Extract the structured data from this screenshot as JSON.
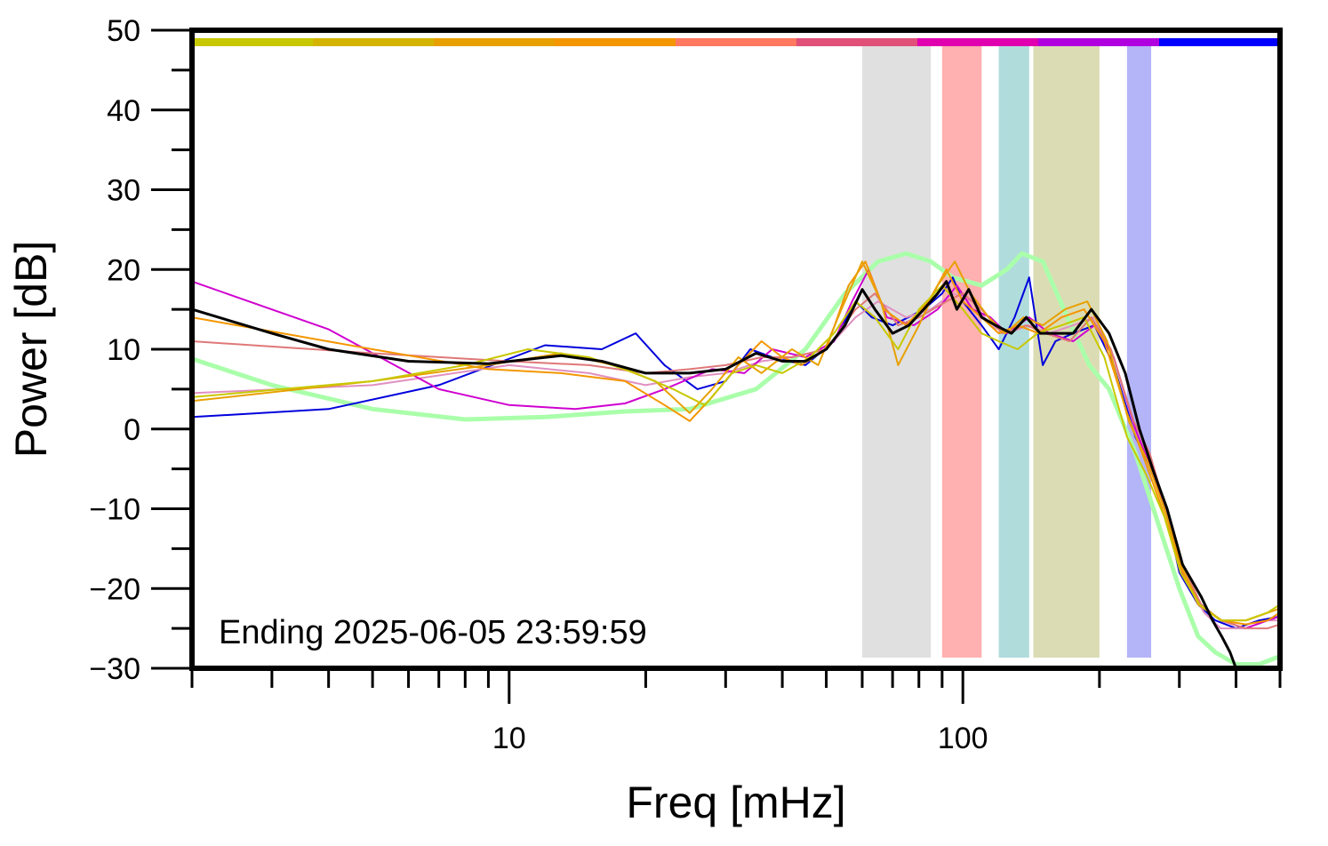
{
  "chart_data": {
    "type": "line",
    "xlabel": "Freq [mHz]",
    "ylabel": "Power [dB]",
    "xscale": "log",
    "xlim": [
      2,
      500
    ],
    "ylim": [
      -30,
      50
    ],
    "x_ticks": [
      10,
      100
    ],
    "y_ticks": [
      50,
      40,
      30,
      20,
      10,
      0,
      -10,
      -20,
      -30
    ],
    "grid": false,
    "annotation": "Ending 2025-06-05 23:59:59",
    "color_bar": [
      "#c8c800",
      "#d4b400",
      "#e8a000",
      "#f49600",
      "#ff7860",
      "#e05078",
      "#e000b0",
      "#b000e0",
      "#0000ff"
    ],
    "bands": [
      {
        "x0": 60,
        "x1": 85,
        "color": "#e0e0e0"
      },
      {
        "x0": 90,
        "x1": 110,
        "color": "#ffb0b0"
      },
      {
        "x0": 120,
        "x1": 140,
        "color": "#b0dcdc"
      },
      {
        "x0": 143,
        "x1": 200,
        "color": "#dcdcb4"
      },
      {
        "x0": 230,
        "x1": 260,
        "color": "#b4b4f8"
      }
    ],
    "series": [
      {
        "color": "#aaffaa",
        "width": 5,
        "points": [
          [
            2,
            8.8
          ],
          [
            3,
            5.5
          ],
          [
            5,
            2.5
          ],
          [
            8,
            1.2
          ],
          [
            12,
            1.5
          ],
          [
            18,
            2.2
          ],
          [
            25,
            2.5
          ],
          [
            35,
            5
          ],
          [
            45,
            10
          ],
          [
            55,
            17
          ],
          [
            65,
            21
          ],
          [
            75,
            22
          ],
          [
            85,
            21
          ],
          [
            95,
            19
          ],
          [
            110,
            18
          ],
          [
            125,
            20
          ],
          [
            135,
            22
          ],
          [
            150,
            21
          ],
          [
            170,
            14
          ],
          [
            190,
            8
          ],
          [
            210,
            5
          ],
          [
            240,
            -3
          ],
          [
            270,
            -12
          ],
          [
            300,
            -20
          ],
          [
            330,
            -26
          ],
          [
            360,
            -28
          ],
          [
            400,
            -29.5
          ],
          [
            450,
            -29.5
          ],
          [
            500,
            -28.5
          ]
        ]
      },
      {
        "color": "#0000dd",
        "width": 2,
        "points": [
          [
            2,
            1.5
          ],
          [
            4,
            2.5
          ],
          [
            7,
            5.5
          ],
          [
            12,
            10.5
          ],
          [
            16,
            10
          ],
          [
            19,
            12
          ],
          [
            22,
            8
          ],
          [
            26,
            5
          ],
          [
            30,
            6
          ],
          [
            34,
            10
          ],
          [
            38,
            9
          ],
          [
            45,
            8
          ],
          [
            52,
            11
          ],
          [
            58,
            16
          ],
          [
            63,
            14
          ],
          [
            70,
            13
          ],
          [
            82,
            15
          ],
          [
            90,
            17
          ],
          [
            95,
            19
          ],
          [
            100,
            16
          ],
          [
            110,
            13
          ],
          [
            120,
            10
          ],
          [
            130,
            14
          ],
          [
            140,
            19
          ],
          [
            150,
            8
          ],
          [
            160,
            11
          ],
          [
            175,
            12
          ],
          [
            195,
            13
          ],
          [
            215,
            8
          ],
          [
            240,
            -1
          ],
          [
            260,
            -5
          ],
          [
            280,
            -10
          ],
          [
            300,
            -18
          ],
          [
            330,
            -22
          ],
          [
            360,
            -24
          ],
          [
            400,
            -25
          ],
          [
            450,
            -24
          ],
          [
            500,
            -23.5
          ]
        ]
      },
      {
        "color": "#e090c0",
        "width": 2,
        "points": [
          [
            2,
            4.5
          ],
          [
            5,
            5.5
          ],
          [
            10,
            8
          ],
          [
            15,
            7
          ],
          [
            20,
            5.5
          ],
          [
            25,
            6.5
          ],
          [
            30,
            7
          ],
          [
            36,
            8.5
          ],
          [
            42,
            9
          ],
          [
            50,
            10
          ],
          [
            58,
            14
          ],
          [
            65,
            16
          ],
          [
            75,
            14
          ],
          [
            85,
            15
          ],
          [
            95,
            17
          ],
          [
            105,
            16
          ],
          [
            115,
            13
          ],
          [
            125,
            12
          ],
          [
            140,
            13
          ],
          [
            155,
            12
          ],
          [
            175,
            13
          ],
          [
            195,
            14
          ],
          [
            215,
            9
          ],
          [
            240,
            0
          ],
          [
            260,
            -4
          ],
          [
            285,
            -12
          ],
          [
            310,
            -19
          ],
          [
            340,
            -23
          ],
          [
            370,
            -25
          ],
          [
            420,
            -25
          ],
          [
            470,
            -24
          ],
          [
            500,
            -24
          ]
        ]
      },
      {
        "color": "#d000d0",
        "width": 2,
        "points": [
          [
            2,
            18.5
          ],
          [
            4,
            12.5
          ],
          [
            7,
            5
          ],
          [
            10,
            3
          ],
          [
            14,
            2.5
          ],
          [
            18,
            3.2
          ],
          [
            22,
            5
          ],
          [
            28,
            7.5
          ],
          [
            33,
            7
          ],
          [
            38,
            10
          ],
          [
            45,
            9
          ],
          [
            52,
            11
          ],
          [
            57,
            16
          ],
          [
            62,
            20
          ],
          [
            68,
            14
          ],
          [
            78,
            13
          ],
          [
            88,
            15
          ],
          [
            97,
            18
          ],
          [
            105,
            15
          ],
          [
            115,
            14
          ],
          [
            125,
            12
          ],
          [
            140,
            14
          ],
          [
            155,
            12
          ],
          [
            175,
            11
          ],
          [
            195,
            13
          ],
          [
            215,
            9
          ],
          [
            240,
            0
          ],
          [
            260,
            -5
          ],
          [
            280,
            -10
          ],
          [
            305,
            -18
          ],
          [
            335,
            -22
          ],
          [
            370,
            -24
          ],
          [
            420,
            -25
          ],
          [
            470,
            -24
          ],
          [
            500,
            -23.5
          ]
        ]
      },
      {
        "color": "#e07878",
        "width": 2,
        "points": [
          [
            2,
            11
          ],
          [
            5,
            9.5
          ],
          [
            10,
            8.5
          ],
          [
            15,
            8
          ],
          [
            20,
            7
          ],
          [
            25,
            7.5
          ],
          [
            30,
            8
          ],
          [
            36,
            9
          ],
          [
            42,
            9
          ],
          [
            50,
            10
          ],
          [
            58,
            15
          ],
          [
            64,
            17
          ],
          [
            72,
            13
          ],
          [
            80,
            14
          ],
          [
            92,
            16
          ],
          [
            100,
            17
          ],
          [
            110,
            15
          ],
          [
            122,
            12
          ],
          [
            138,
            13
          ],
          [
            152,
            12
          ],
          [
            172,
            11
          ],
          [
            192,
            14
          ],
          [
            212,
            10
          ],
          [
            238,
            1
          ],
          [
            258,
            -3
          ],
          [
            280,
            -10
          ],
          [
            305,
            -17
          ],
          [
            335,
            -22
          ],
          [
            370,
            -24
          ],
          [
            420,
            -25
          ],
          [
            470,
            -25
          ],
          [
            500,
            -24.5
          ]
        ]
      },
      {
        "color": "#f49600",
        "width": 2,
        "points": [
          [
            2,
            14
          ],
          [
            5,
            10
          ],
          [
            9,
            7.5
          ],
          [
            13,
            7
          ],
          [
            18,
            6
          ],
          [
            22,
            3
          ],
          [
            25,
            1
          ],
          [
            28,
            4
          ],
          [
            32,
            8
          ],
          [
            36,
            11
          ],
          [
            40,
            9
          ],
          [
            44,
            8
          ],
          [
            50,
            10
          ],
          [
            56,
            18
          ],
          [
            61,
            21
          ],
          [
            67,
            15
          ],
          [
            75,
            13
          ],
          [
            84,
            16
          ],
          [
            92,
            20
          ],
          [
            100,
            16
          ],
          [
            110,
            14
          ],
          [
            120,
            12
          ],
          [
            132,
            13
          ],
          [
            147,
            12
          ],
          [
            165,
            14
          ],
          [
            185,
            15
          ],
          [
            205,
            11
          ],
          [
            230,
            2
          ],
          [
            252,
            -4
          ],
          [
            275,
            -10
          ],
          [
            300,
            -17
          ],
          [
            330,
            -22
          ],
          [
            370,
            -24
          ],
          [
            420,
            -24.5
          ],
          [
            470,
            -24
          ],
          [
            500,
            -23
          ]
        ]
      },
      {
        "color": "#e8a000",
        "width": 2,
        "points": [
          [
            2,
            3.5
          ],
          [
            5,
            6
          ],
          [
            9,
            8
          ],
          [
            13,
            9.5
          ],
          [
            17,
            8
          ],
          [
            21,
            6
          ],
          [
            25,
            2
          ],
          [
            28,
            5
          ],
          [
            32,
            9
          ],
          [
            36,
            7
          ],
          [
            42,
            10
          ],
          [
            48,
            8
          ],
          [
            54,
            15
          ],
          [
            60,
            21
          ],
          [
            66,
            16
          ],
          [
            72,
            8
          ],
          [
            80,
            13
          ],
          [
            88,
            18
          ],
          [
            96,
            21
          ],
          [
            104,
            17
          ],
          [
            114,
            14
          ],
          [
            124,
            12
          ],
          [
            136,
            14
          ],
          [
            150,
            13
          ],
          [
            168,
            15
          ],
          [
            188,
            16
          ],
          [
            208,
            11
          ],
          [
            232,
            1
          ],
          [
            255,
            -4
          ],
          [
            278,
            -10
          ],
          [
            302,
            -17
          ],
          [
            332,
            -22
          ],
          [
            372,
            -24
          ],
          [
            422,
            -24
          ],
          [
            472,
            -23
          ],
          [
            500,
            -22.5
          ]
        ]
      },
      {
        "color": "#c8c800",
        "width": 2,
        "points": [
          [
            2,
            4
          ],
          [
            5,
            6
          ],
          [
            8,
            8
          ],
          [
            11,
            10
          ],
          [
            15,
            9
          ],
          [
            19,
            7
          ],
          [
            23,
            5
          ],
          [
            27,
            3
          ],
          [
            31,
            7
          ],
          [
            35,
            8
          ],
          [
            40,
            7
          ],
          [
            46,
            9
          ],
          [
            52,
            12
          ],
          [
            58,
            16
          ],
          [
            64,
            14
          ],
          [
            72,
            10
          ],
          [
            80,
            15
          ],
          [
            90,
            18
          ],
          [
            100,
            15
          ],
          [
            110,
            12
          ],
          [
            120,
            11
          ],
          [
            132,
            10
          ],
          [
            146,
            12
          ],
          [
            165,
            13
          ],
          [
            185,
            14
          ],
          [
            205,
            9
          ],
          [
            230,
            -1
          ],
          [
            255,
            -6
          ],
          [
            278,
            -11
          ],
          [
            302,
            -18
          ],
          [
            332,
            -22
          ],
          [
            370,
            -24
          ],
          [
            420,
            -24
          ],
          [
            470,
            -23
          ],
          [
            500,
            -22
          ]
        ]
      },
      {
        "color": "#000000",
        "width": 3,
        "points": [
          [
            2,
            15
          ],
          [
            3,
            12
          ],
          [
            4,
            10
          ],
          [
            6,
            8.5
          ],
          [
            9,
            8.2
          ],
          [
            13,
            9.2
          ],
          [
            16,
            8.5
          ],
          [
            20,
            7
          ],
          [
            25,
            7
          ],
          [
            30,
            7.5
          ],
          [
            35,
            9.5
          ],
          [
            40,
            8.5
          ],
          [
            45,
            8.5
          ],
          [
            50,
            10
          ],
          [
            55,
            13
          ],
          [
            60,
            17.5
          ],
          [
            64,
            15
          ],
          [
            70,
            12
          ],
          [
            76,
            13
          ],
          [
            82,
            15
          ],
          [
            88,
            17
          ],
          [
            92,
            18.5
          ],
          [
            97,
            15
          ],
          [
            103,
            17.5
          ],
          [
            110,
            14
          ],
          [
            118,
            13
          ],
          [
            128,
            12
          ],
          [
            138,
            14
          ],
          [
            148,
            12
          ],
          [
            160,
            12
          ],
          [
            175,
            12
          ],
          [
            192,
            15
          ],
          [
            210,
            12
          ],
          [
            228,
            7
          ],
          [
            245,
            0
          ],
          [
            262,
            -5
          ],
          [
            282,
            -10
          ],
          [
            305,
            -17
          ],
          [
            335,
            -21
          ],
          [
            355,
            -24
          ],
          [
            372,
            -26
          ],
          [
            388,
            -28
          ],
          [
            400,
            -30
          ]
        ]
      }
    ]
  }
}
